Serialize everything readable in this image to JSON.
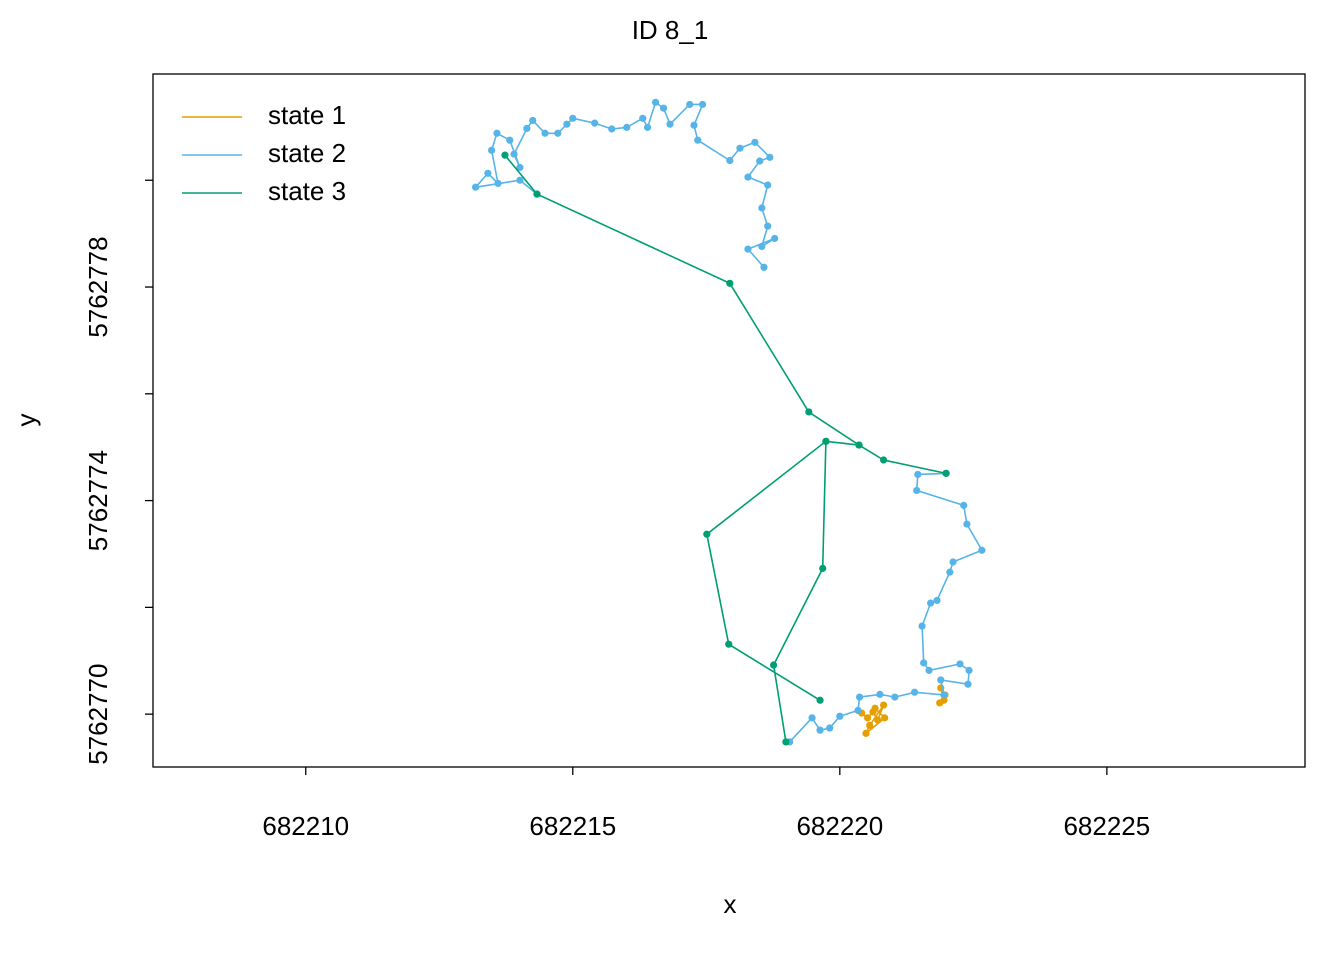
{
  "chart_data": {
    "type": "line",
    "title": "ID 8_1",
    "x_label": "x",
    "y_label": "y",
    "xlim": [
      682207.14,
      682228.71
    ],
    "ylim": [
      5762769.01,
      5762781.99
    ],
    "xticks": [
      682210,
      682215,
      682220,
      682225
    ],
    "yticks": [
      5762770,
      {
        "value": 5762772,
        "label": null
      },
      5762774,
      {
        "value": 5762776,
        "label": null
      },
      5762778,
      {
        "value": 5762780,
        "label": null
      }
    ],
    "legend": "topleft",
    "markers": true,
    "series": [
      {
        "name": "state 1",
        "color": "#E69F00",
        "x": [
          682220.41,
          682220.52,
          682220.62,
          682220.71,
          682220.82,
          682220.56,
          682220.49,
          682220.84,
          682220.66,
          null,
          682221.89,
          682221.95,
          682221.87,
          682221.97
        ],
        "y": [
          5762770.02,
          5762769.93,
          5762770.04,
          5762769.89,
          5762770.17,
          5762769.79,
          5762769.64,
          5762769.93,
          5762770.11,
          null,
          5762770.49,
          5762770.26,
          5762770.21,
          5762770.36
        ]
      },
      {
        "name": "state 2",
        "color": "#56B4E9",
        "x": [
          682214.33,
          682214.01,
          682213.18,
          682213.41,
          682213.6,
          682213.48,
          682213.58,
          682213.82,
          682214.01,
          682213.9,
          682214.14,
          682214.25,
          682214.48,
          682214.72,
          682214.89,
          682215.0,
          682215.41,
          682215.73,
          682216.01,
          682216.31,
          682216.4,
          682216.55,
          682216.7,
          682216.82,
          682217.19,
          682217.43,
          682217.27,
          682217.34,
          682217.94,
          682218.13,
          682218.41,
          682218.69,
          682218.5,
          682218.28,
          682218.65,
          682218.54,
          682218.65,
          682218.54,
          682218.78,
          682218.28,
          682218.58,
          null,
          682221.99,
          682221.46,
          682221.44,
          682222.32,
          682222.38,
          682222.66,
          682222.12,
          682222.06,
          682221.82,
          682221.7,
          682221.54,
          682221.57,
          682221.67,
          682222.25,
          682222.42,
          682222.4,
          682221.89,
          682221.95,
          682221.4,
          682221.03,
          682220.75,
          682220.37,
          682220.34,
          682220.0,
          682219.81,
          682219.63,
          682219.48,
          682219.06
        ],
        "y": [
          5762779.74,
          5762780.0,
          5762779.87,
          5762780.13,
          5762779.94,
          5762780.56,
          5762780.88,
          5762780.75,
          5762780.24,
          5762780.49,
          5762780.97,
          5762781.12,
          5762780.88,
          5762780.88,
          5762781.05,
          5762781.16,
          5762781.07,
          5762780.96,
          5762780.99,
          5762781.16,
          5762780.99,
          5762781.46,
          5762781.35,
          5762781.05,
          5762781.42,
          5762781.42,
          5762781.03,
          5762780.75,
          5762780.37,
          5762780.6,
          5762780.71,
          5762780.43,
          5762780.36,
          5762780.06,
          5762779.91,
          5762779.48,
          5762779.14,
          5762778.76,
          5762778.91,
          5762778.71,
          5762778.37,
          null,
          5762774.51,
          5762774.49,
          5762774.19,
          5762773.91,
          5762773.56,
          5762773.07,
          5762772.85,
          5762772.66,
          5762772.13,
          5762772.08,
          5762771.65,
          5762770.96,
          5762770.82,
          5762770.94,
          5762770.82,
          5762770.56,
          5762770.64,
          5762770.36,
          5762770.41,
          5762770.32,
          5762770.37,
          5762770.32,
          5762770.07,
          5762769.96,
          5762769.74,
          5762769.7,
          5762769.93,
          5762769.48
        ]
      },
      {
        "name": "state 3",
        "color": "#009E73",
        "x": [
          682213.73,
          682214.33,
          682217.94,
          682219.42,
          682220.36,
          682220.82,
          682221.99,
          null,
          682220.36,
          682219.74,
          682217.51,
          682217.92,
          682219.63,
          null,
          682219.74,
          682219.68,
          682218.76,
          682218.99
        ],
        "y": [
          5762780.47,
          5762779.74,
          5762778.07,
          5762775.66,
          5762775.04,
          5762774.76,
          5762774.51,
          null,
          5762775.04,
          5762775.11,
          5762773.37,
          5762771.31,
          5762770.26,
          null,
          5762775.11,
          5762772.73,
          5762770.92,
          5762769.48
        ]
      }
    ]
  }
}
